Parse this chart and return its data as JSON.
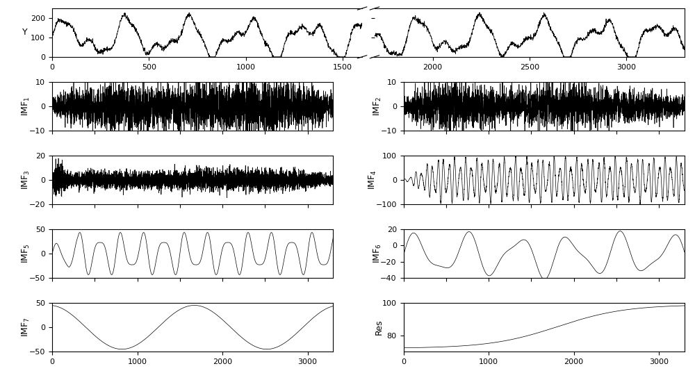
{
  "n_points": 3300,
  "top_panel": {
    "ylabel": "Y",
    "ylim": [
      0,
      250
    ],
    "yticks": [
      0,
      100,
      200
    ],
    "xticks_left": [
      0,
      500,
      1000,
      1500
    ],
    "xticks_right": [
      2000,
      2500,
      3000
    ],
    "gap_start": 1600,
    "gap_end": 1800
  },
  "panels": [
    {
      "label": "IMF$_1$",
      "ylim": [
        -10,
        10
      ],
      "yticks": [
        -10,
        0,
        10
      ],
      "row": 1,
      "col": 0
    },
    {
      "label": "IMF$_2$",
      "ylim": [
        -10,
        10
      ],
      "yticks": [
        -10,
        0,
        10
      ],
      "row": 1,
      "col": 1
    },
    {
      "label": "IMF$_3$",
      "ylim": [
        -20,
        20
      ],
      "yticks": [
        -20,
        0,
        20
      ],
      "row": 2,
      "col": 0
    },
    {
      "label": "IMF$_4$",
      "ylim": [
        -100,
        100
      ],
      "yticks": [
        -100,
        0,
        100
      ],
      "row": 2,
      "col": 1
    },
    {
      "label": "IMF$_5$",
      "ylim": [
        -50,
        50
      ],
      "yticks": [
        -50,
        0,
        50
      ],
      "row": 3,
      "col": 0
    },
    {
      "label": "IMF$_6$",
      "ylim": [
        -40,
        20
      ],
      "yticks": [
        -40,
        -20,
        0,
        20
      ],
      "row": 3,
      "col": 1
    },
    {
      "label": "IMF$_7$",
      "ylim": [
        -50,
        50
      ],
      "yticks": [
        -50,
        0,
        50
      ],
      "row": 4,
      "col": 0
    },
    {
      "label": "Res",
      "ylim": [
        70,
        100
      ],
      "yticks": [
        80,
        100
      ],
      "row": 4,
      "col": 1
    }
  ],
  "xlim_sub": [
    0,
    3300
  ],
  "xticks_sub": [
    0,
    1000,
    2000,
    3000
  ],
  "line_color": "#000000",
  "background_color": "#ffffff",
  "label_fontsize": 9,
  "tick_fontsize": 8
}
